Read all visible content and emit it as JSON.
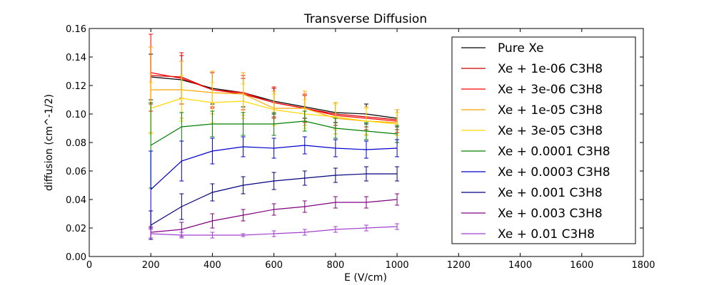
{
  "chart_data": {
    "type": "line",
    "title": "Transverse Diffusion",
    "xlabel": "E (V/cm)",
    "ylabel": "diffusion (cm^-1/2)",
    "xlim": [
      0,
      1800
    ],
    "ylim": [
      0,
      0.16
    ],
    "x_ticks": [
      "0",
      "200",
      "400",
      "600",
      "800",
      "1000",
      "1200",
      "1400",
      "1600",
      "1800"
    ],
    "y_ticks": [
      "0.00",
      "0.02",
      "0.04",
      "0.06",
      "0.08",
      "0.10",
      "0.12",
      "0.14",
      "0.16"
    ],
    "grid": false,
    "legend_position": "top-right",
    "x": [
      200,
      300,
      400,
      500,
      600,
      700,
      800,
      900,
      1000
    ],
    "series": [
      {
        "name": "Pure Xe",
        "color": "#000000",
        "values": [
          0.126,
          0.124,
          0.118,
          0.115,
          0.109,
          0.105,
          0.101,
          0.1,
          0.097
        ],
        "errors": [
          0.016,
          0.013,
          0.011,
          0.01,
          0.009,
          0.008,
          0.007,
          0.007,
          0.006
        ]
      },
      {
        "name": "Xe + 1e-06 C3H8",
        "color": "#cc0000",
        "values": [
          0.127,
          0.126,
          0.117,
          0.114,
          0.108,
          0.104,
          0.1,
          0.098,
          0.096
        ],
        "errors": [
          0.02,
          0.015,
          0.012,
          0.011,
          0.01,
          0.009,
          0.008,
          0.007,
          0.007
        ]
      },
      {
        "name": "Xe + 3e-06 C3H8",
        "color": "#ff0000",
        "values": [
          0.129,
          0.125,
          0.117,
          0.115,
          0.108,
          0.104,
          0.099,
          0.097,
          0.095
        ],
        "errors": [
          0.027,
          0.018,
          0.013,
          0.012,
          0.011,
          0.01,
          0.009,
          0.008,
          0.008
        ]
      },
      {
        "name": "Xe + 1e-05 C3H8",
        "color": "#ffa500",
        "values": [
          0.117,
          0.117,
          0.115,
          0.114,
          0.104,
          0.104,
          0.097,
          0.095,
          0.094
        ],
        "errors": [
          0.03,
          0.02,
          0.015,
          0.015,
          0.012,
          0.012,
          0.011,
          0.01,
          0.009
        ]
      },
      {
        "name": "Xe + 3e-05 C3H8",
        "color": "#ffd700",
        "values": [
          0.104,
          0.111,
          0.108,
          0.109,
          0.103,
          0.1,
          0.098,
          0.095,
          0.093
        ],
        "errors": [
          0.018,
          0.016,
          0.014,
          0.012,
          0.011,
          0.01,
          0.009,
          0.009,
          0.008
        ]
      },
      {
        "name": "Xe + 0.0001 C3H8",
        "color": "#008000",
        "values": [
          0.078,
          0.091,
          0.093,
          0.093,
          0.093,
          0.095,
          0.09,
          0.088,
          0.086
        ],
        "errors": [
          0.03,
          0.01,
          0.009,
          0.008,
          0.008,
          0.007,
          0.007,
          0.006,
          0.006
        ]
      },
      {
        "name": "Xe + 0.0003 C3H8",
        "color": "#0000cc",
        "values": [
          0.047,
          0.067,
          0.074,
          0.077,
          0.076,
          0.078,
          0.076,
          0.075,
          0.076
        ],
        "errors": [
          0.027,
          0.014,
          0.009,
          0.007,
          0.007,
          0.006,
          0.006,
          0.006,
          0.006
        ]
      },
      {
        "name": "Xe + 0.001 C3H8",
        "color": "#000080",
        "values": [
          0.022,
          0.035,
          0.045,
          0.05,
          0.053,
          0.055,
          0.057,
          0.058,
          0.058
        ],
        "errors": [
          0.01,
          0.009,
          0.006,
          0.006,
          0.006,
          0.005,
          0.005,
          0.005,
          0.005
        ]
      },
      {
        "name": "Xe + 0.003 C3H8",
        "color": "#800080",
        "values": [
          0.017,
          0.019,
          0.025,
          0.029,
          0.033,
          0.035,
          0.038,
          0.038,
          0.04
        ],
        "errors": [
          0.004,
          0.005,
          0.005,
          0.004,
          0.004,
          0.004,
          0.004,
          0.004,
          0.004
        ]
      },
      {
        "name": "Xe + 0.01 C3H8",
        "color": "#a040d0",
        "values": [
          0.016,
          0.015,
          0.015,
          0.015,
          0.016,
          0.017,
          0.019,
          0.02,
          0.021
        ],
        "errors": [
          0.003,
          0.002,
          0.002,
          0.001,
          0.002,
          0.002,
          0.002,
          0.002,
          0.002
        ]
      }
    ]
  }
}
